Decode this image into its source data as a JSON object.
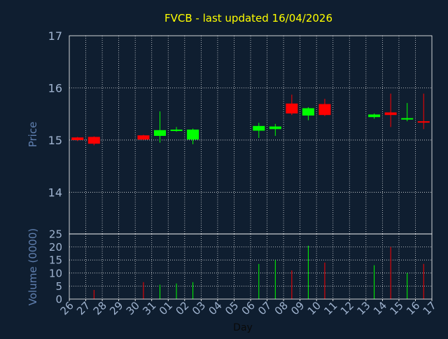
{
  "chart_data": {
    "type": "candlestick",
    "title": "FVCB - last updated 16/04/2026",
    "xlabel": "Day",
    "price_panel": {
      "ylabel": "Price",
      "ylim": [
        13.2,
        17
      ],
      "yticks": [
        14,
        15,
        16,
        17
      ]
    },
    "volume_panel": {
      "ylabel": "Volume (0000)",
      "ylim": [
        0,
        25
      ],
      "yticks": [
        0,
        5,
        10,
        15,
        20,
        25
      ]
    },
    "x_tick_labels": [
      "26",
      "27",
      "28",
      "29",
      "30",
      "31",
      "01",
      "02",
      "03",
      "04",
      "05",
      "06",
      "07",
      "08",
      "09",
      "10",
      "11",
      "12",
      "13",
      "14",
      "15",
      "16",
      "17"
    ],
    "grid": true,
    "colors": {
      "background": "#0f1e30",
      "axes": "#ffffff",
      "grid": "#ffffff",
      "tick_text": "#a0b4d0",
      "title_text": "#ffff00",
      "label_text": "#6080b0",
      "up": "#00ff00",
      "down": "#ff0000"
    },
    "candles": [
      {
        "day": "26",
        "open": 15.05,
        "close": 15.0,
        "high": 15.06,
        "low": 14.98,
        "volume": 0
      },
      {
        "day": "27",
        "open": 15.06,
        "close": 14.93,
        "high": 15.07,
        "low": 14.9,
        "volume": 3.5
      },
      {
        "day": "30",
        "open": 15.09,
        "close": 15.01,
        "high": 15.1,
        "low": 15.0,
        "volume": 6.5
      },
      {
        "day": "31",
        "open": 15.08,
        "close": 15.19,
        "high": 15.55,
        "low": 14.95,
        "volume": 5.5
      },
      {
        "day": "01",
        "open": 15.18,
        "close": 15.2,
        "high": 15.25,
        "low": 15.16,
        "volume": 6.0
      },
      {
        "day": "02",
        "open": 15.01,
        "close": 15.2,
        "high": 15.22,
        "low": 14.92,
        "volume": 6.5
      },
      {
        "day": "06",
        "open": 15.18,
        "close": 15.27,
        "high": 15.33,
        "low": 15.04,
        "volume": 13.5
      },
      {
        "day": "07",
        "open": 15.21,
        "close": 15.26,
        "high": 15.31,
        "low": 15.08,
        "volume": 15.0
      },
      {
        "day": "08",
        "open": 15.7,
        "close": 15.51,
        "high": 15.87,
        "low": 15.48,
        "volume": 11.0
      },
      {
        "day": "09",
        "open": 15.47,
        "close": 15.61,
        "high": 15.63,
        "low": 15.38,
        "volume": 20.5
      },
      {
        "day": "10",
        "open": 15.69,
        "close": 15.48,
        "high": 15.79,
        "low": 15.46,
        "volume": 14.0
      },
      {
        "day": "13",
        "open": 15.44,
        "close": 15.49,
        "high": 15.51,
        "low": 15.41,
        "volume": 13.0
      },
      {
        "day": "14",
        "open": 15.53,
        "close": 15.48,
        "high": 15.89,
        "low": 15.25,
        "volume": 20.0
      },
      {
        "day": "15",
        "open": 15.4,
        "close": 15.42,
        "high": 15.71,
        "low": 15.36,
        "volume": 10.0
      },
      {
        "day": "16",
        "open": 15.36,
        "close": 15.34,
        "high": 15.89,
        "low": 15.21,
        "volume": 13.5
      }
    ]
  }
}
